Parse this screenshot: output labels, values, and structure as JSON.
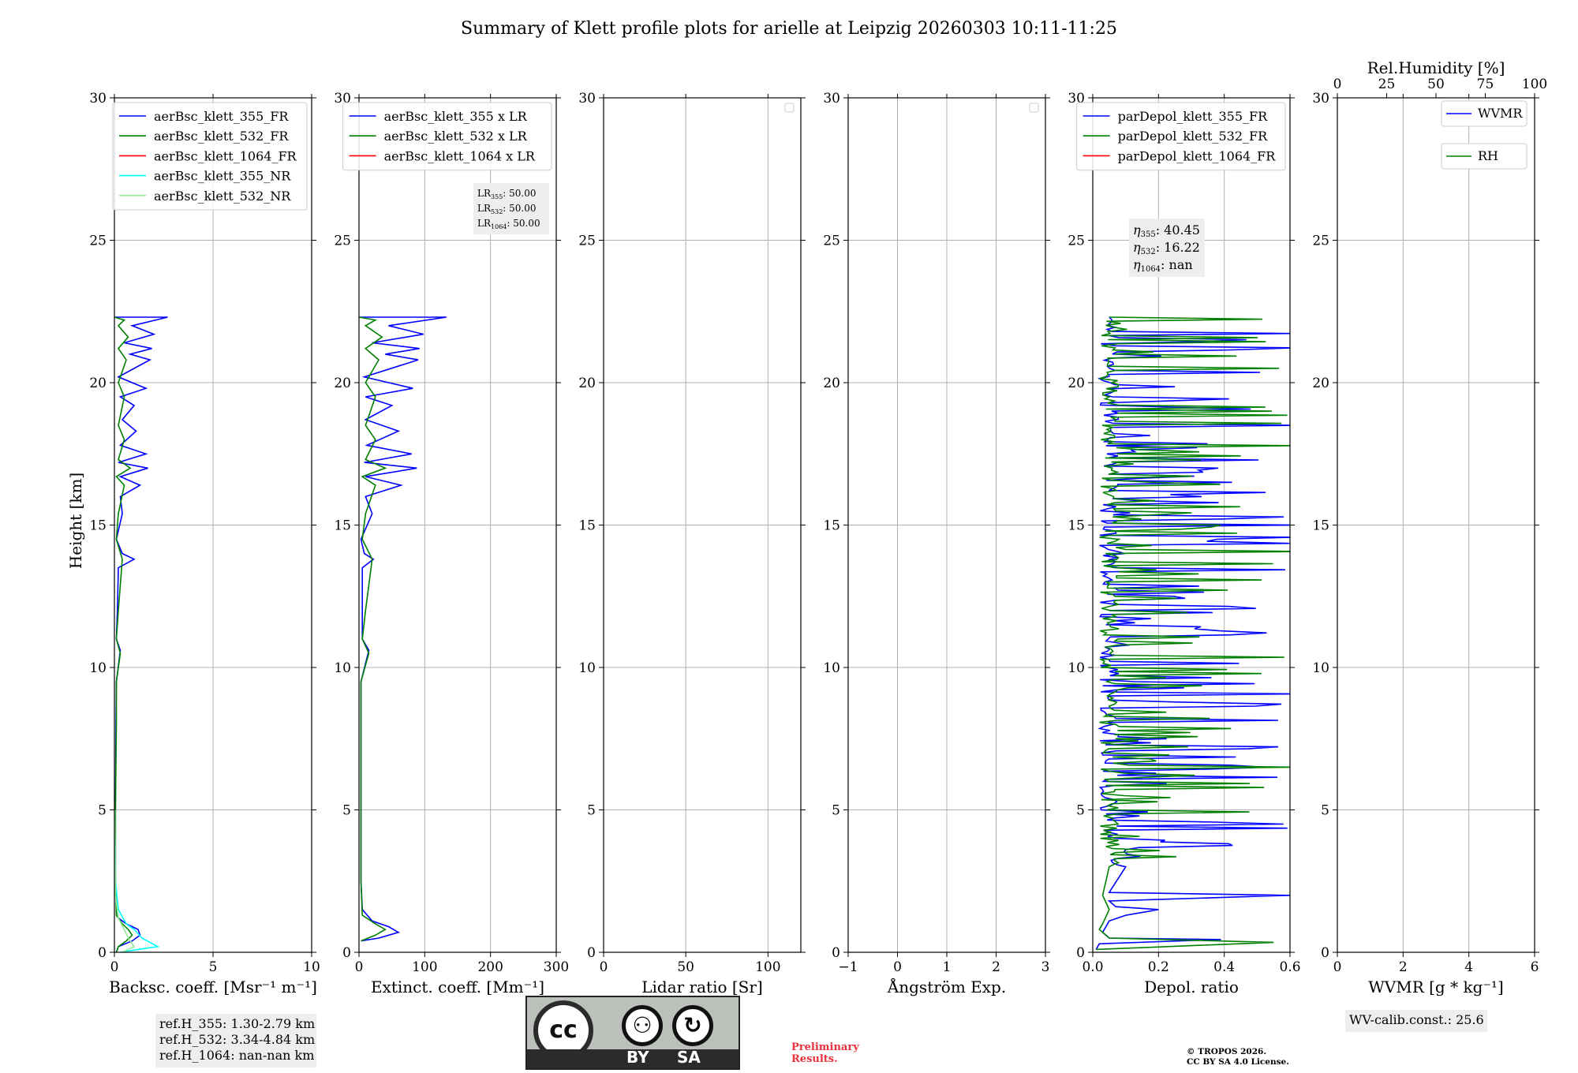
{
  "title": "Summary of Klett profile plots for arielle at Leipzig 20260303 10:11-11:25",
  "colors": {
    "blue": "#0000ff",
    "green": "#008000",
    "red": "#ff0000",
    "cyan": "#00ffff",
    "lightgreen": "#90ee90",
    "grid": "#b0b0b0",
    "boxbg": "#eeeeee",
    "prelim": "#e8313c"
  },
  "ylabel": "Height [km]",
  "chart_data": [
    {
      "type": "line",
      "id": "bsc",
      "xlabel": "Backsc. coeff. [Msr⁻¹ m⁻¹]",
      "xlim": [
        0,
        10
      ],
      "ylim": [
        0,
        30
      ],
      "xticks": [
        0,
        5,
        10
      ],
      "yticks": [
        0,
        5,
        10,
        15,
        20,
        25,
        30
      ],
      "legend": [
        "aerBsc_klett_355_FR",
        "aerBsc_klett_532_FR",
        "aerBsc_klett_1064_FR",
        "aerBsc_klett_355_NR",
        "aerBsc_klett_532_NR"
      ],
      "legend_colors": [
        "blue",
        "green",
        "red",
        "cyan",
        "lightgreen"
      ],
      "legend_position": "upper-right",
      "series": [
        {
          "name": "aerBsc_klett_355_FR",
          "color": "blue",
          "points": [
            [
              0.1,
              0
            ],
            [
              0.2,
              0.2
            ],
            [
              0.9,
              0.4
            ],
            [
              1.3,
              0.6
            ],
            [
              1.2,
              0.8
            ],
            [
              0.6,
              1.0
            ],
            [
              0.2,
              1.2
            ],
            [
              0.1,
              1.6
            ],
            [
              0.05,
              2.5
            ],
            [
              0.05,
              5
            ],
            [
              0.08,
              8
            ],
            [
              0.1,
              9.5
            ],
            [
              0.3,
              10.6
            ],
            [
              0.1,
              11
            ],
            [
              0.15,
              12
            ],
            [
              0.2,
              13.5
            ],
            [
              1.0,
              13.8
            ],
            [
              0.4,
              14.0
            ],
            [
              0.1,
              14.5
            ],
            [
              0.4,
              15.4
            ],
            [
              0.3,
              16
            ],
            [
              1.3,
              16.4
            ],
            [
              0.3,
              16.7
            ],
            [
              1.7,
              17.0
            ],
            [
              0.2,
              17.2
            ],
            [
              1.6,
              17.5
            ],
            [
              0.3,
              17.8
            ],
            [
              1.1,
              18.3
            ],
            [
              0.4,
              18.7
            ],
            [
              1.0,
              19.2
            ],
            [
              0.3,
              19.5
            ],
            [
              1.6,
              19.8
            ],
            [
              0.2,
              20.2
            ],
            [
              1.8,
              20.8
            ],
            [
              0.8,
              21.0
            ],
            [
              1.9,
              21.2
            ],
            [
              0.5,
              21.4
            ],
            [
              2.0,
              21.7
            ],
            [
              0.9,
              22.0
            ],
            [
              2.7,
              22.3
            ],
            [
              0,
              22.3
            ]
          ]
        },
        {
          "name": "aerBsc_klett_532_FR",
          "color": "green",
          "points": [
            [
              0.1,
              0
            ],
            [
              0.2,
              0.2
            ],
            [
              0.6,
              0.4
            ],
            [
              0.9,
              0.6
            ],
            [
              0.7,
              0.8
            ],
            [
              0.4,
              1.0
            ],
            [
              0.1,
              1.3
            ],
            [
              0.05,
              2.5
            ],
            [
              0.05,
              5
            ],
            [
              0.1,
              8
            ],
            [
              0.1,
              9.5
            ],
            [
              0.3,
              10.5
            ],
            [
              0.1,
              11
            ],
            [
              0.2,
              12
            ],
            [
              0.4,
              13.8
            ],
            [
              0.1,
              14.5
            ],
            [
              0.2,
              15.4
            ],
            [
              0.5,
              16.4
            ],
            [
              0.1,
              16.7
            ],
            [
              0.8,
              17.0
            ],
            [
              0.2,
              17.3
            ],
            [
              0.5,
              18
            ],
            [
              0.2,
              18.5
            ],
            [
              0.5,
              19.5
            ],
            [
              0.2,
              20
            ],
            [
              0.6,
              20.8
            ],
            [
              0.2,
              21.2
            ],
            [
              0.7,
              21.6
            ],
            [
              0.2,
              22
            ],
            [
              0.5,
              22.2
            ],
            [
              0,
              22.3
            ]
          ]
        },
        {
          "name": "aerBsc_klett_355_NR",
          "color": "cyan",
          "points": [
            [
              0.3,
              0
            ],
            [
              1.2,
              0.1
            ],
            [
              2.2,
              0.2
            ],
            [
              1.4,
              0.5
            ],
            [
              1.0,
              0.8
            ],
            [
              0.6,
              1.0
            ],
            [
              0.2,
              1.5
            ],
            [
              0.05,
              2.5
            ],
            [
              0.02,
              5
            ]
          ]
        },
        {
          "name": "aerBsc_klett_532_NR",
          "color": "lightgreen",
          "points": [
            [
              0.4,
              0
            ],
            [
              1.0,
              0.2
            ],
            [
              0.7,
              0.5
            ],
            [
              0.5,
              0.8
            ],
            [
              0.2,
              1.2
            ],
            [
              0.05,
              2.0
            ],
            [
              0.02,
              5
            ]
          ]
        }
      ],
      "annotation": [
        "ref.H_355: 1.30-2.79 km",
        "ref.H_532: 3.34-4.84 km",
        "ref.H_1064: nan-nan km"
      ]
    },
    {
      "type": "line",
      "id": "ext",
      "xlabel": "Extinct. coeff. [Mm⁻¹]",
      "xlim": [
        0,
        300
      ],
      "ylim": [
        0,
        30
      ],
      "xticks": [
        0,
        100,
        200,
        300
      ],
      "yticks": [
        0,
        5,
        10,
        15,
        20,
        25,
        30
      ],
      "legend": [
        "aerBsc_klett_355 x LR",
        "aerBsc_klett_532 x LR",
        "aerBsc_klett_1064 x LR"
      ],
      "legend_colors": [
        "blue",
        "green",
        "red"
      ],
      "legend_position": "upper-right",
      "series": [
        {
          "name": "aerBsc_klett_355 x LR",
          "color": "blue",
          "points": [
            [
              3,
              0.4
            ],
            [
              30,
              0.5
            ],
            [
              60,
              0.7
            ],
            [
              45,
              0.9
            ],
            [
              20,
              1.1
            ],
            [
              5,
              1.5
            ],
            [
              3,
              2.5
            ],
            [
              3,
              5
            ],
            [
              3,
              9.5
            ],
            [
              15,
              10.6
            ],
            [
              5,
              11
            ],
            [
              5,
              13.5
            ],
            [
              22,
              13.8
            ],
            [
              8,
              14
            ],
            [
              3,
              14.5
            ],
            [
              20,
              15.4
            ],
            [
              10,
              16
            ],
            [
              64,
              16.4
            ],
            [
              10,
              16.7
            ],
            [
              88,
              17.0
            ],
            [
              8,
              17.2
            ],
            [
              80,
              17.5
            ],
            [
              12,
              17.8
            ],
            [
              60,
              18.3
            ],
            [
              10,
              18.7
            ],
            [
              50,
              19.2
            ],
            [
              10,
              19.5
            ],
            [
              82,
              19.8
            ],
            [
              8,
              20.2
            ],
            [
              90,
              20.8
            ],
            [
              40,
              21.0
            ],
            [
              92,
              21.2
            ],
            [
              20,
              21.4
            ],
            [
              98,
              21.7
            ],
            [
              45,
              22.0
            ],
            [
              133,
              22.3
            ],
            [
              0,
              22.3
            ]
          ]
        },
        {
          "name": "aerBsc_klett_532 x LR",
          "color": "green",
          "points": [
            [
              3,
              0.4
            ],
            [
              25,
              0.6
            ],
            [
              40,
              0.8
            ],
            [
              25,
              1.0
            ],
            [
              5,
              1.3
            ],
            [
              3,
              2.5
            ],
            [
              3,
              5
            ],
            [
              3,
              9.5
            ],
            [
              15,
              10.5
            ],
            [
              5,
              11
            ],
            [
              10,
              12
            ],
            [
              20,
              13.8
            ],
            [
              5,
              14.5
            ],
            [
              10,
              15.4
            ],
            [
              25,
              16.4
            ],
            [
              5,
              16.7
            ],
            [
              40,
              17.0
            ],
            [
              10,
              17.3
            ],
            [
              25,
              18
            ],
            [
              10,
              18.5
            ],
            [
              25,
              19.5
            ],
            [
              10,
              20
            ],
            [
              30,
              20.8
            ],
            [
              10,
              21.2
            ],
            [
              35,
              21.6
            ],
            [
              10,
              22
            ],
            [
              25,
              22.2
            ],
            [
              0,
              22.3
            ]
          ]
        }
      ],
      "annotation": [
        "LR355: 50.00",
        "LR532: 50.00",
        "LR1064: 50.00"
      ]
    },
    {
      "type": "line",
      "id": "lr",
      "xlabel": "Lidar ratio [Sr]",
      "xlim": [
        0,
        120
      ],
      "ylim": [
        0,
        30
      ],
      "xticks": [
        0,
        50,
        100
      ],
      "yticks": [
        0,
        5,
        10,
        15,
        20,
        25,
        30
      ],
      "legend": [],
      "legend_position": "upper-right",
      "series": []
    },
    {
      "type": "line",
      "id": "ang",
      "xlabel": "Ångström Exp.",
      "xlim": [
        -1,
        3
      ],
      "ylim": [
        0,
        30
      ],
      "xticks": [
        -1,
        0,
        1,
        2,
        3
      ],
      "yticks": [
        0,
        5,
        10,
        15,
        20,
        25,
        30
      ],
      "legend": [],
      "legend_position": "upper-right",
      "series": []
    },
    {
      "type": "line",
      "id": "depol",
      "xlabel": "Depol. ratio",
      "xlim": [
        0,
        0.6
      ],
      "ylim": [
        0,
        30
      ],
      "xticks": [
        0.0,
        0.2,
        0.4,
        0.6
      ],
      "yticks": [
        0,
        5,
        10,
        15,
        20,
        25,
        30
      ],
      "legend": [
        "parDepol_klett_355_FR",
        "parDepol_klett_532_FR",
        "parDepol_klett_1064_FR"
      ],
      "legend_colors": [
        "blue",
        "green",
        "red"
      ],
      "legend_position": "upper-right",
      "series": [
        {
          "name": "parDepol_klett_355_FR",
          "color": "blue",
          "noisy": true,
          "points": [
            [
              0.01,
              0.1
            ],
            [
              0.02,
              0.3
            ],
            [
              0.39,
              0.45
            ],
            [
              0.05,
              0.5
            ],
            [
              0.03,
              0.7
            ],
            [
              0.04,
              0.9
            ],
            [
              0.05,
              1.1
            ],
            [
              0.1,
              1.3
            ],
            [
              0.2,
              1.5
            ],
            [
              0.07,
              1.6
            ],
            [
              0.05,
              1.8
            ],
            [
              0.6,
              2.0
            ],
            [
              0.05,
              2.1
            ],
            [
              0.1,
              3.0
            ],
            [
              0.05,
              3.3
            ],
            [
              0.1,
              3.6
            ],
            [
              0.4,
              3.75
            ],
            [
              0.05,
              4.0
            ],
            [
              0.05,
              5.0
            ],
            [
              0.05,
              10
            ],
            [
              0.05,
              15
            ],
            [
              0.05,
              20
            ],
            [
              0.05,
              22.3
            ]
          ]
        },
        {
          "name": "parDepol_klett_532_FR",
          "color": "green",
          "noisy": true,
          "points": [
            [
              0.01,
              0.1
            ],
            [
              0.55,
              0.35
            ],
            [
              0.05,
              0.5
            ],
            [
              0.02,
              0.8
            ],
            [
              0.03,
              1.0
            ],
            [
              0.05,
              1.5
            ],
            [
              0.03,
              2.0
            ],
            [
              0.05,
              3.0
            ],
            [
              0.05,
              5.0
            ],
            [
              0.05,
              10
            ],
            [
              0.05,
              15
            ],
            [
              0.05,
              20
            ],
            [
              0.05,
              22.3
            ]
          ]
        }
      ],
      "annotation": [
        "η355: 40.45",
        "η532: 16.22",
        "η1064: nan"
      ]
    },
    {
      "type": "line",
      "id": "wv",
      "xlabel": "WVMR [g * kg⁻¹]",
      "xlim": [
        0,
        6
      ],
      "ylim": [
        0,
        30
      ],
      "xticks": [
        0,
        2,
        4,
        6
      ],
      "yticks": [
        0,
        5,
        10,
        15,
        20,
        25,
        30
      ],
      "top_axis_label": "Rel.Humidity [%]",
      "top_xticks": [
        0,
        25,
        50,
        75,
        100
      ],
      "legend": [
        "WVMR",
        "RH"
      ],
      "legend_colors": [
        "blue",
        "green"
      ],
      "legend_position": "upper-right",
      "series": [],
      "annotation": [
        "WV-calib.const.: 25.6"
      ]
    }
  ],
  "footer": {
    "cc_labels": [
      "BY",
      "SA"
    ],
    "cc_mark": "cc",
    "preliminary": [
      "Preliminary",
      "Results."
    ],
    "copyright": [
      "© TROPOS 2026.",
      "CC BY SA 4.0 License."
    ]
  }
}
